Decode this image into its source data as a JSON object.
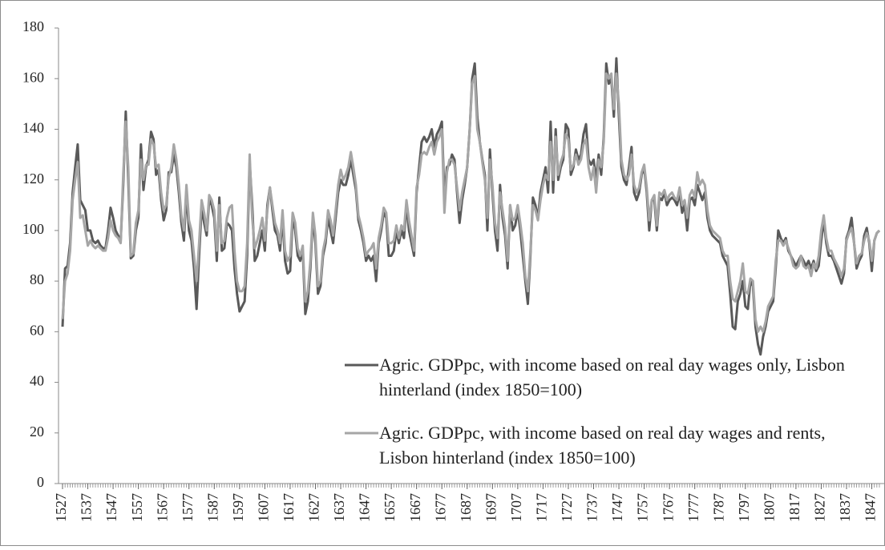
{
  "chart_data": {
    "type": "line",
    "x": [
      1527,
      1528,
      1529,
      1530,
      1531,
      1532,
      1533,
      1534,
      1535,
      1536,
      1537,
      1538,
      1539,
      1540,
      1541,
      1542,
      1543,
      1544,
      1545,
      1546,
      1547,
      1548,
      1549,
      1550,
      1551,
      1552,
      1553,
      1554,
      1555,
      1556,
      1557,
      1558,
      1559,
      1560,
      1561,
      1562,
      1563,
      1564,
      1565,
      1566,
      1567,
      1568,
      1569,
      1570,
      1571,
      1572,
      1573,
      1574,
      1575,
      1576,
      1577,
      1578,
      1579,
      1580,
      1581,
      1582,
      1583,
      1584,
      1585,
      1586,
      1587,
      1588,
      1589,
      1590,
      1591,
      1592,
      1593,
      1594,
      1595,
      1596,
      1597,
      1598,
      1599,
      1600,
      1601,
      1602,
      1603,
      1604,
      1605,
      1606,
      1607,
      1608,
      1609,
      1610,
      1611,
      1612,
      1613,
      1614,
      1615,
      1616,
      1617,
      1618,
      1619,
      1620,
      1621,
      1622,
      1623,
      1624,
      1625,
      1626,
      1627,
      1628,
      1629,
      1630,
      1631,
      1632,
      1633,
      1634,
      1635,
      1636,
      1637,
      1638,
      1639,
      1640,
      1641,
      1642,
      1643,
      1644,
      1645,
      1646,
      1647,
      1648,
      1649,
      1650,
      1651,
      1652,
      1653,
      1654,
      1655,
      1656,
      1657,
      1658,
      1659,
      1660,
      1661,
      1662,
      1663,
      1664,
      1665,
      1666,
      1667,
      1668,
      1669,
      1670,
      1671,
      1672,
      1673,
      1674,
      1675,
      1676,
      1677,
      1678,
      1679,
      1680,
      1681,
      1682,
      1683,
      1684,
      1685,
      1686,
      1687,
      1688,
      1689,
      1690,
      1691,
      1692,
      1693,
      1694,
      1695,
      1696,
      1697,
      1698,
      1699,
      1700,
      1701,
      1702,
      1703,
      1704,
      1705,
      1706,
      1707,
      1708,
      1709,
      1710,
      1711,
      1712,
      1713,
      1714,
      1715,
      1716,
      1717,
      1718,
      1719,
      1720,
      1721,
      1722,
      1723,
      1724,
      1725,
      1726,
      1727,
      1728,
      1729,
      1730,
      1731,
      1732,
      1733,
      1734,
      1735,
      1736,
      1737,
      1738,
      1739,
      1740,
      1741,
      1742,
      1743,
      1744,
      1745,
      1746,
      1747,
      1748,
      1749,
      1750,
      1751,
      1752,
      1753,
      1754,
      1755,
      1756,
      1757,
      1758,
      1759,
      1760,
      1761,
      1762,
      1763,
      1764,
      1765,
      1766,
      1767,
      1768,
      1769,
      1770,
      1771,
      1772,
      1773,
      1774,
      1775,
      1776,
      1777,
      1778,
      1779,
      1780,
      1781,
      1782,
      1783,
      1784,
      1785,
      1786,
      1787,
      1788,
      1789,
      1790,
      1791,
      1792,
      1793,
      1794,
      1795,
      1796,
      1797,
      1798,
      1799,
      1800,
      1801,
      1802,
      1803,
      1804,
      1805,
      1806,
      1807,
      1808,
      1809,
      1810,
      1811,
      1812,
      1813,
      1814,
      1815,
      1816,
      1817,
      1818,
      1819,
      1820,
      1821,
      1822,
      1823,
      1824,
      1825,
      1826,
      1827,
      1828,
      1829,
      1830,
      1831,
      1832,
      1833,
      1834,
      1835,
      1836,
      1837,
      1838,
      1839,
      1840,
      1841,
      1842,
      1843,
      1844,
      1845,
      1846,
      1847,
      1848,
      1849,
      1850
    ],
    "series": [
      {
        "name": "Agric. GDPpc, with income based on real day wages only, Lisbon hinterland (index 1850=100)",
        "color": "#595959",
        "values": [
          62,
          85,
          86,
          95,
          115,
          125,
          134,
          112,
          110,
          108,
          100,
          100,
          96,
          95,
          96,
          94,
          93,
          93,
          100,
          109,
          105,
          100,
          98,
          96,
          118,
          147,
          120,
          89,
          90,
          100,
          105,
          134,
          116,
          125,
          128,
          139,
          136,
          122,
          124,
          112,
          104,
          108,
          123,
          123,
          130,
          125,
          115,
          103,
          96,
          115,
          100,
          96,
          85,
          69,
          90,
          109,
          103,
          98,
          112,
          110,
          105,
          88,
          113,
          92,
          93,
          103,
          102,
          100,
          85,
          75,
          68,
          70,
          72,
          90,
          127,
          110,
          88,
          90,
          95,
          100,
          92,
          110,
          117,
          108,
          100,
          98,
          92,
          105,
          88,
          83,
          84,
          105,
          100,
          90,
          88,
          92,
          67,
          72,
          85,
          105,
          95,
          75,
          78,
          90,
          95,
          105,
          100,
          95,
          105,
          115,
          120,
          118,
          118,
          122,
          128,
          122,
          116,
          104,
          100,
          95,
          88,
          90,
          88,
          90,
          80,
          95,
          100,
          107,
          105,
          90,
          90,
          92,
          100,
          95,
          100,
          97,
          110,
          100,
          95,
          90,
          115,
          125,
          135,
          137,
          135,
          137,
          140,
          133,
          138,
          140,
          143,
          113,
          125,
          126,
          130,
          128,
          115,
          103,
          112,
          118,
          125,
          140,
          160,
          166,
          145,
          135,
          128,
          122,
          100,
          132,
          115,
          100,
          92,
          118,
          105,
          98,
          85,
          110,
          100,
          102,
          108,
          100,
          90,
          80,
          71,
          90,
          113,
          110,
          105,
          115,
          120,
          125,
          115,
          143,
          115,
          140,
          120,
          125,
          128,
          142,
          140,
          122,
          125,
          132,
          128,
          130,
          138,
          142,
          128,
          126,
          128,
          120,
          130,
          122,
          137,
          166,
          158,
          160,
          145,
          168,
          145,
          125,
          120,
          118,
          125,
          133,
          115,
          112,
          115,
          122,
          125,
          115,
          100,
          112,
          112,
          100,
          113,
          112,
          115,
          110,
          112,
          113,
          112,
          110,
          115,
          107,
          110,
          100,
          112,
          113,
          110,
          118,
          115,
          112,
          115,
          105,
          100,
          98,
          97,
          96,
          95,
          90,
          88,
          86,
          75,
          62,
          61,
          72,
          75,
          80,
          70,
          69,
          80,
          78,
          62,
          55,
          51,
          58,
          62,
          68,
          70,
          72,
          85,
          100,
          97,
          95,
          97,
          92,
          90,
          88,
          86,
          88,
          90,
          88,
          86,
          88,
          85,
          88,
          84,
          86,
          96,
          104,
          95,
          90,
          90,
          88,
          85,
          82,
          79,
          83,
          97,
          100,
          105,
          95,
          85,
          88,
          90,
          98,
          101,
          95,
          84,
          96,
          99,
          100
        ]
      },
      {
        "name": "Agric. GDPpc, with income based on real day wages and rents, Lisbon hinterland (index 1850=100)",
        "color": "#a6a6a6",
        "values": [
          65,
          80,
          83,
          92,
          112,
          120,
          127,
          105,
          106,
          100,
          94,
          96,
          94,
          93,
          94,
          93,
          92,
          92,
          97,
          104,
          100,
          98,
          97,
          95,
          122,
          143,
          125,
          90,
          91,
          103,
          108,
          128,
          120,
          126,
          126,
          136,
          134,
          125,
          126,
          115,
          108,
          110,
          121,
          125,
          134,
          128,
          118,
          106,
          100,
          118,
          104,
          100,
          90,
          80,
          95,
          112,
          107,
          100,
          114,
          112,
          108,
          92,
          110,
          95,
          96,
          105,
          109,
          110,
          92,
          80,
          76,
          76,
          78,
          95,
          130,
          105,
          93,
          96,
          100,
          105,
          96,
          108,
          117,
          110,
          103,
          100,
          95,
          108,
          92,
          88,
          90,
          107,
          103,
          93,
          90,
          94,
          72,
          76,
          88,
          107,
          98,
          78,
          80,
          92,
          97,
          108,
          104,
          98,
          108,
          118,
          124,
          120,
          122,
          125,
          131,
          125,
          118,
          106,
          102,
          97,
          90,
          92,
          93,
          95,
          85,
          97,
          102,
          109,
          107,
          95,
          95,
          96,
          102,
          97,
          102,
          100,
          112,
          104,
          98,
          92,
          117,
          122,
          130,
          131,
          130,
          133,
          135,
          130,
          135,
          137,
          140,
          107,
          123,
          128,
          128,
          126,
          117,
          108,
          115,
          120,
          125,
          140,
          158,
          161,
          140,
          135,
          127,
          120,
          105,
          128,
          118,
          103,
          97,
          115,
          108,
          101,
          88,
          110,
          104,
          105,
          110,
          103,
          95,
          82,
          76,
          92,
          110,
          108,
          104,
          112,
          118,
          122,
          120,
          135,
          120,
          137,
          122,
          127,
          130,
          138,
          136,
          124,
          126,
          130,
          126,
          128,
          134,
          136,
          125,
          120,
          125,
          115,
          128,
          125,
          135,
          162,
          160,
          162,
          148,
          162,
          150,
          128,
          122,
          120,
          122,
          130,
          118,
          115,
          117,
          123,
          126,
          117,
          104,
          112,
          114,
          102,
          115,
          114,
          116,
          112,
          114,
          115,
          113,
          112,
          117,
          110,
          112,
          105,
          114,
          116,
          113,
          123,
          118,
          120,
          118,
          108,
          102,
          100,
          99,
          98,
          97,
          92,
          90,
          90,
          80,
          73,
          72,
          76,
          80,
          87,
          76,
          75,
          81,
          80,
          65,
          60,
          62,
          60,
          64,
          70,
          72,
          74,
          88,
          96,
          96,
          94,
          96,
          93,
          90,
          86,
          85,
          86,
          90,
          86,
          85,
          86,
          82,
          87,
          85,
          90,
          100,
          106,
          97,
          92,
          92,
          89,
          87,
          85,
          82,
          85,
          96,
          99,
          101,
          95,
          87,
          90,
          91,
          96,
          99,
          96,
          88,
          96,
          99,
          100
        ]
      }
    ],
    "xlim": [
      1527,
      1850
    ],
    "xticks": [
      1527,
      1537,
      1547,
      1557,
      1567,
      1577,
      1587,
      1597,
      1607,
      1617,
      1627,
      1637,
      1647,
      1657,
      1667,
      1677,
      1687,
      1697,
      1707,
      1717,
      1727,
      1737,
      1747,
      1757,
      1767,
      1777,
      1787,
      1797,
      1807,
      1817,
      1827,
      1837,
      1847
    ],
    "ylim": [
      0,
      180
    ],
    "yticks": [
      0,
      20,
      40,
      60,
      80,
      100,
      120,
      140,
      160,
      180
    ],
    "grid": false
  }
}
